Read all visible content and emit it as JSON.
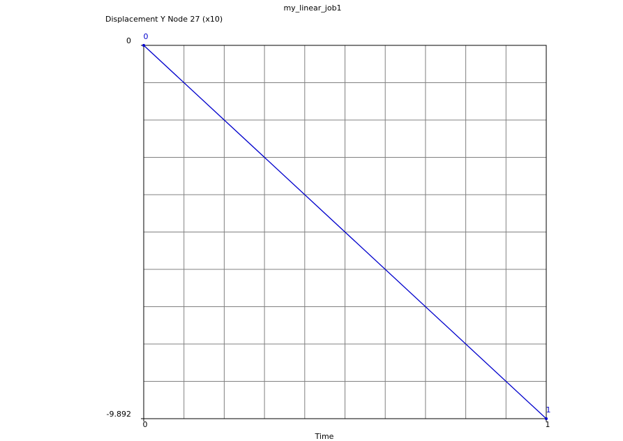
{
  "chart_data": {
    "type": "line",
    "title": "my_linear_job1",
    "y_label": "Displacement Y Node 27 (x10)",
    "x_label": "Time",
    "x": [
      0,
      1
    ],
    "values": [
      0,
      -9.892
    ],
    "point_labels": [
      0,
      1
    ],
    "color": "#0000cc",
    "xlim": [
      0,
      1
    ],
    "ylim": [
      -9.892,
      0
    ],
    "xticks": [
      0,
      1
    ],
    "yticks": [
      -9.892,
      0
    ],
    "x_grid": [
      0.1,
      0.2,
      0.3,
      0.4,
      0.5,
      0.6,
      0.7,
      0.8,
      0.9
    ],
    "y_grid": [
      -0.9892,
      -1.9784,
      -2.9676,
      -3.9568,
      -4.946,
      -5.9352,
      -6.9244,
      -7.9136,
      -8.9028
    ],
    "grid": true
  }
}
